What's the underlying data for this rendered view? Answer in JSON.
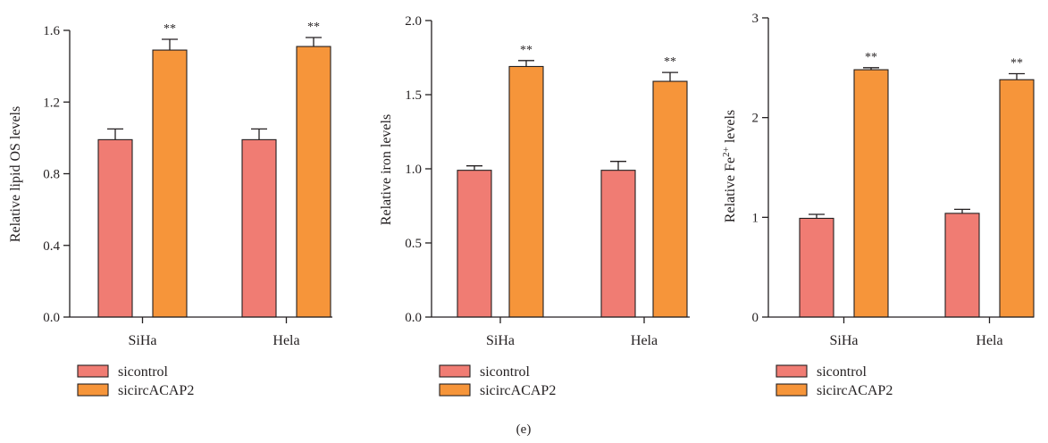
{
  "caption": "(e)",
  "colors": {
    "sicontrol": "#f07c73",
    "sicircACAP2": "#f6953a",
    "axis": "#231f20"
  },
  "chart_data": [
    {
      "type": "bar",
      "ylabel": "Relative lipid OS levels",
      "ylabel_sup": "",
      "ylabel_suffix": "",
      "ylim": [
        0,
        1.6
      ],
      "yticks": [
        0.0,
        0.4,
        0.8,
        1.2,
        1.6
      ],
      "ytick_labels": [
        "0.0",
        "0.4",
        "0.8",
        "1.2",
        "1.6"
      ],
      "categories": [
        "SiHa",
        "Hela"
      ],
      "series": [
        {
          "name": "sicontrol",
          "values": [
            0.99,
            0.99
          ],
          "errors": [
            0.06,
            0.06
          ],
          "sig": [
            "",
            ""
          ]
        },
        {
          "name": "sicircACAP2",
          "values": [
            1.49,
            1.51
          ],
          "errors": [
            0.06,
            0.05
          ],
          "sig": [
            "**",
            "**"
          ]
        }
      ],
      "legend_position": "bottom-left"
    },
    {
      "type": "bar",
      "ylabel": "Relative iron levels",
      "ylabel_sup": "",
      "ylabel_suffix": "",
      "ylim": [
        0,
        2.0
      ],
      "yticks": [
        0.0,
        0.5,
        1.0,
        1.5,
        2.0
      ],
      "ytick_labels": [
        "0.0",
        "0.5",
        "1.0",
        "1.5",
        "2.0"
      ],
      "categories": [
        "SiHa",
        "Hela"
      ],
      "series": [
        {
          "name": "sicontrol",
          "values": [
            0.99,
            0.99
          ],
          "errors": [
            0.03,
            0.06
          ],
          "sig": [
            "",
            ""
          ]
        },
        {
          "name": "sicircACAP2",
          "values": [
            1.69,
            1.59
          ],
          "errors": [
            0.04,
            0.06
          ],
          "sig": [
            "**",
            "**"
          ]
        }
      ],
      "legend_position": "bottom-left"
    },
    {
      "type": "bar",
      "ylabel": "Relative Fe",
      "ylabel_sup": "2+",
      "ylabel_suffix": " levels",
      "ylim": [
        0,
        3
      ],
      "yticks": [
        0,
        1,
        2,
        3
      ],
      "ytick_labels": [
        "0",
        "1",
        "2",
        "3"
      ],
      "categories": [
        "SiHa",
        "Hela"
      ],
      "series": [
        {
          "name": "sicontrol",
          "values": [
            0.99,
            1.04
          ],
          "errors": [
            0.04,
            0.04
          ],
          "sig": [
            "",
            ""
          ]
        },
        {
          "name": "sicircACAP2",
          "values": [
            2.48,
            2.38
          ],
          "errors": [
            0.02,
            0.06
          ],
          "sig": [
            "**",
            "**"
          ]
        }
      ],
      "legend_position": "bottom-left"
    }
  ]
}
